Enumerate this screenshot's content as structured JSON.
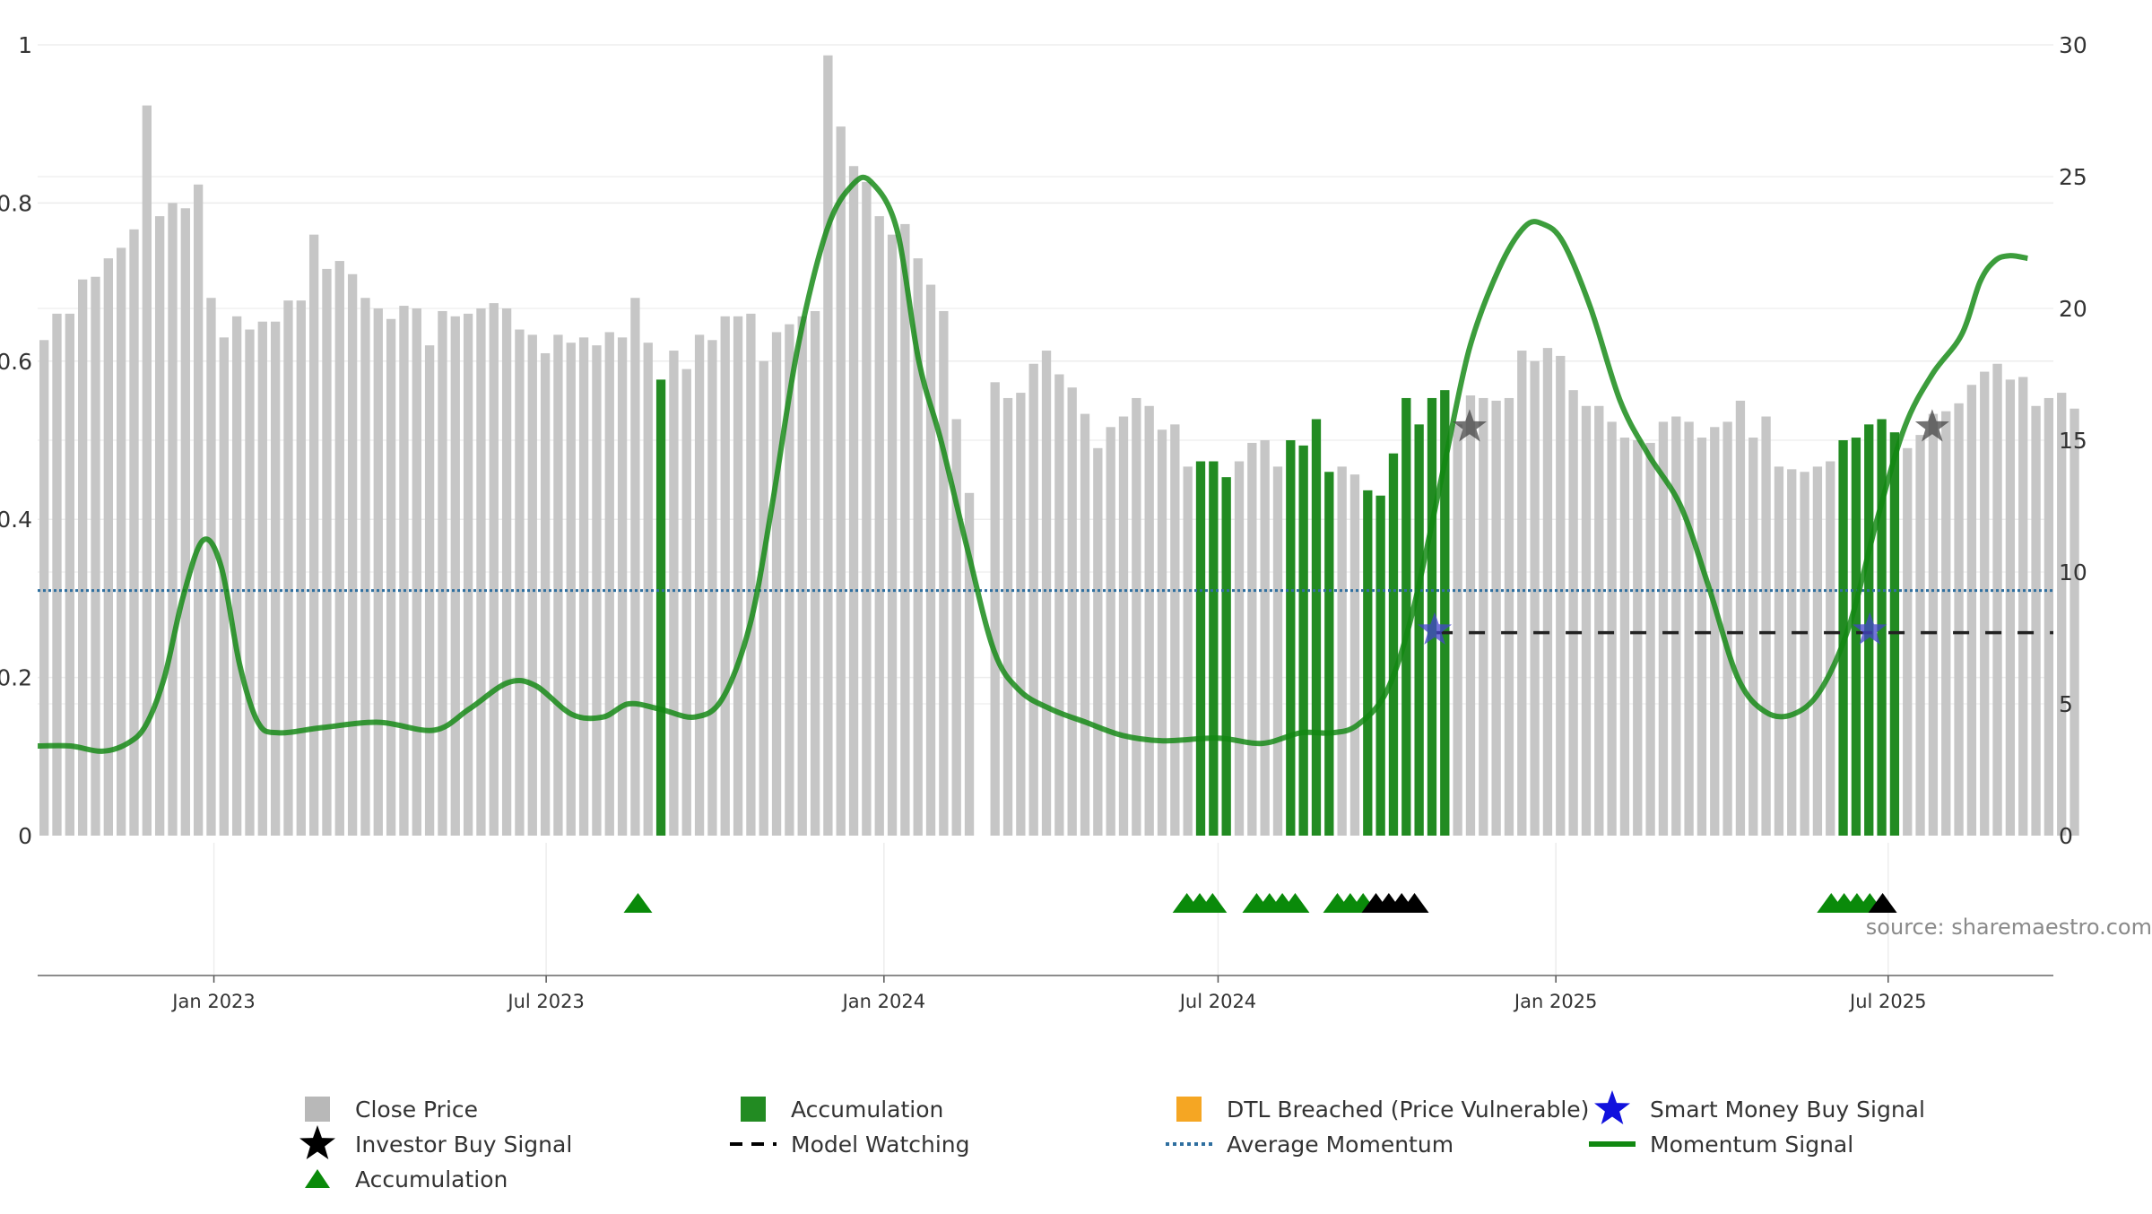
{
  "chart_data": {
    "type": "bar",
    "title": "",
    "xlabel": "",
    "ylabel": "",
    "left_axis": {
      "ticks": [
        0,
        0.2,
        0.4,
        0.6,
        0.8,
        1
      ],
      "tick_labels": [
        "0",
        "0.2",
        "0.4",
        "0.6",
        "0.8",
        "1"
      ],
      "ylim": [
        0,
        1
      ]
    },
    "right_axis": {
      "ticks": [
        0,
        5,
        10,
        15,
        20,
        25,
        30
      ],
      "tick_labels": [
        "0",
        "5",
        "10",
        "15",
        "20",
        "25",
        "30"
      ],
      "ylim": [
        0,
        30
      ]
    },
    "x_axis": {
      "range": [
        "2022-09-27",
        "2025-09-29"
      ],
      "ticks": [
        {
          "date": "2023-01-01",
          "label": "Jan 2023"
        },
        {
          "date": "2023-07-01",
          "label": "Jul 2023"
        },
        {
          "date": "2024-01-01",
          "label": "Jan 2024"
        },
        {
          "date": "2024-07-01",
          "label": "Jul 2024"
        },
        {
          "date": "2025-01-01",
          "label": "Jan 2025"
        },
        {
          "date": "2025-07-01",
          "label": "Jul 2025"
        }
      ]
    },
    "grid": true,
    "source_note": "source: sharemaestro.com",
    "colors": {
      "close_price": "#c6c6c6",
      "accumulation": "#228b22",
      "momentum": "#118811",
      "average_momentum": "#2f6f9f",
      "model_watching": "#222222",
      "investor_buy": "#444444",
      "smart_money": "#4444cc",
      "dtl_breached": "#f5a623"
    },
    "bars": {
      "start": "2022-09-27",
      "step_days": 7,
      "values": [
        18.8,
        19.8,
        19.8,
        21.1,
        21.2,
        21.9,
        22.3,
        23.0,
        27.7,
        23.5,
        24.0,
        23.8,
        24.7,
        20.4,
        18.9,
        19.7,
        19.2,
        19.5,
        19.5,
        20.3,
        20.3,
        22.8,
        21.5,
        21.8,
        21.3,
        20.4,
        20.0,
        19.6,
        20.1,
        20.0,
        18.6,
        19.9,
        19.7,
        19.8,
        20.0,
        20.2,
        20.0,
        19.2,
        19.0,
        18.3,
        19.0,
        18.7,
        18.9,
        18.6,
        19.1,
        18.9,
        20.4,
        18.7,
        17.3,
        18.4,
        17.7,
        19.0,
        18.8,
        19.7,
        19.7,
        19.8,
        18.0,
        19.1,
        19.4,
        19.7,
        19.9,
        29.6,
        26.9,
        25.4,
        24.8,
        23.5,
        22.8,
        23.2,
        21.9,
        20.9,
        19.9,
        15.8,
        13.0,
        0,
        17.2,
        16.6,
        16.8,
        17.9,
        18.4,
        17.5,
        17.0,
        16.0,
        14.7,
        15.5,
        15.9,
        16.6,
        16.3,
        15.4,
        15.6,
        14.0,
        14.2,
        14.2,
        13.6,
        14.2,
        14.9,
        15.0,
        14.0,
        15.0,
        14.8,
        15.8,
        13.8,
        14.0,
        13.7,
        13.1,
        12.9,
        14.5,
        16.6,
        15.6,
        16.6,
        16.9,
        15.6,
        16.7,
        16.6,
        16.5,
        16.6,
        18.4,
        18.0,
        18.5,
        18.2,
        16.9,
        16.3,
        16.3,
        15.7,
        15.1,
        15.0,
        14.9,
        15.7,
        15.9,
        15.7,
        15.1,
        15.5,
        15.7,
        16.5,
        15.1,
        15.9,
        14.0,
        13.9,
        13.8,
        14.0,
        14.2,
        15.0,
        15.1,
        15.6,
        15.8,
        15.3,
        14.7,
        15.2,
        16.0,
        16.1,
        16.4,
        17.1,
        17.6,
        17.9,
        17.3,
        17.4,
        16.3,
        16.6,
        16.8,
        16.2
      ],
      "accumulation_indices": [
        48,
        90,
        91,
        92,
        97,
        98,
        99,
        100,
        103,
        104,
        105,
        106,
        107,
        108,
        109,
        140,
        141,
        142,
        143,
        144
      ]
    },
    "momentum": {
      "points": [
        [
          "2022-09-27",
          3.4
        ],
        [
          "2022-10-15",
          3.4
        ],
        [
          "2022-11-01",
          3.2
        ],
        [
          "2022-11-15",
          3.5
        ],
        [
          "2022-11-25",
          4.2
        ],
        [
          "2022-12-05",
          6.0
        ],
        [
          "2022-12-15",
          9.0
        ],
        [
          "2022-12-26",
          11.2
        ],
        [
          "2023-01-05",
          10.2
        ],
        [
          "2023-01-15",
          6.5
        ],
        [
          "2023-01-25",
          4.3
        ],
        [
          "2023-02-05",
          3.9
        ],
        [
          "2023-03-01",
          4.1
        ],
        [
          "2023-04-01",
          4.3
        ],
        [
          "2023-05-01",
          4.0
        ],
        [
          "2023-05-20",
          4.8
        ],
        [
          "2023-06-10",
          5.8
        ],
        [
          "2023-06-25",
          5.7
        ],
        [
          "2023-07-15",
          4.6
        ],
        [
          "2023-08-01",
          4.5
        ],
        [
          "2023-08-15",
          5.0
        ],
        [
          "2023-09-01",
          4.8
        ],
        [
          "2023-09-20",
          4.5
        ],
        [
          "2023-10-05",
          5.2
        ],
        [
          "2023-10-20",
          8.0
        ],
        [
          "2023-11-01",
          12.5
        ],
        [
          "2023-11-15",
          18.5
        ],
        [
          "2023-12-01",
          23.0
        ],
        [
          "2023-12-15",
          24.7
        ],
        [
          "2023-12-25",
          24.8
        ],
        [
          "2024-01-08",
          23.0
        ],
        [
          "2024-01-20",
          18.0
        ],
        [
          "2024-02-01",
          15.0
        ],
        [
          "2024-02-15",
          11.0
        ],
        [
          "2024-03-01",
          7.0
        ],
        [
          "2024-03-15",
          5.5
        ],
        [
          "2024-04-01",
          4.8
        ],
        [
          "2024-04-20",
          4.3
        ],
        [
          "2024-05-10",
          3.8
        ],
        [
          "2024-06-01",
          3.6
        ],
        [
          "2024-07-01",
          3.7
        ],
        [
          "2024-07-25",
          3.5
        ],
        [
          "2024-08-15",
          3.9
        ],
        [
          "2024-09-01",
          3.9
        ],
        [
          "2024-09-15",
          4.2
        ],
        [
          "2024-10-01",
          5.5
        ],
        [
          "2024-10-15",
          8.5
        ],
        [
          "2024-11-01",
          14.0
        ],
        [
          "2024-11-15",
          18.5
        ],
        [
          "2024-12-01",
          21.5
        ],
        [
          "2024-12-15",
          23.1
        ],
        [
          "2024-12-25",
          23.2
        ],
        [
          "2025-01-05",
          22.5
        ],
        [
          "2025-01-20",
          20.0
        ],
        [
          "2025-02-05",
          16.5
        ],
        [
          "2025-02-20",
          14.5
        ],
        [
          "2025-03-10",
          12.5
        ],
        [
          "2025-03-25",
          9.5
        ],
        [
          "2025-04-10",
          6.0
        ],
        [
          "2025-04-25",
          4.7
        ],
        [
          "2025-05-10",
          4.6
        ],
        [
          "2025-05-25",
          5.5
        ],
        [
          "2025-06-10",
          8.0
        ],
        [
          "2025-06-25",
          12.0
        ],
        [
          "2025-07-10",
          15.5
        ],
        [
          "2025-07-25",
          17.5
        ],
        [
          "2025-08-10",
          19.0
        ],
        [
          "2025-08-20",
          21.0
        ],
        [
          "2025-08-28",
          21.8
        ],
        [
          "2025-09-05",
          22.0
        ],
        [
          "2025-09-15",
          21.9
        ]
      ]
    },
    "average_momentum": 9.3,
    "model_watching": {
      "start": "2024-10-28",
      "end": "2025-09-29",
      "value": 7.7
    },
    "smart_money_buy_signals": [
      {
        "date": "2024-10-27",
        "value": 7.8
      },
      {
        "date": "2025-06-21",
        "value": 7.8
      }
    ],
    "investor_buy_signals": [
      {
        "date": "2024-11-15",
        "value": 15.5
      },
      {
        "date": "2025-07-25",
        "value": 15.5
      }
    ],
    "triangle_markers": [
      {
        "date": "2023-08-20",
        "color": "green"
      },
      {
        "date": "2024-06-14",
        "color": "green"
      },
      {
        "date": "2024-06-21",
        "color": "green"
      },
      {
        "date": "2024-06-28",
        "color": "green"
      },
      {
        "date": "2024-07-22",
        "color": "green"
      },
      {
        "date": "2024-07-29",
        "color": "green"
      },
      {
        "date": "2024-08-05",
        "color": "green"
      },
      {
        "date": "2024-08-12",
        "color": "green"
      },
      {
        "date": "2024-09-04",
        "color": "green"
      },
      {
        "date": "2024-09-11",
        "color": "green"
      },
      {
        "date": "2024-09-18",
        "color": "green"
      },
      {
        "date": "2024-09-25",
        "color": "black"
      },
      {
        "date": "2024-10-02",
        "color": "black"
      },
      {
        "date": "2024-10-09",
        "color": "black"
      },
      {
        "date": "2024-10-16",
        "color": "black"
      },
      {
        "date": "2025-05-31",
        "color": "green"
      },
      {
        "date": "2025-06-07",
        "color": "green"
      },
      {
        "date": "2025-06-14",
        "color": "green"
      },
      {
        "date": "2025-06-21",
        "color": "green"
      },
      {
        "date": "2025-06-28",
        "color": "black"
      }
    ],
    "legend": {
      "placement": "bottom",
      "entries": [
        {
          "label": "Close Price",
          "symbol": "square",
          "color": "#b8b8b8"
        },
        {
          "label": "Accumulation",
          "symbol": "square",
          "color": "#228b22"
        },
        {
          "label": "DTL Breached (Price Vulnerable)",
          "symbol": "square",
          "color": "#f5a623"
        },
        {
          "label": "Smart Money Buy Signal",
          "symbol": "star",
          "color": "#1111dd"
        },
        {
          "label": "Investor Buy Signal",
          "symbol": "star",
          "color": "#000000"
        },
        {
          "label": "Model Watching",
          "symbol": "dash",
          "color": "#000000"
        },
        {
          "label": "Average Momentum",
          "symbol": "dotted",
          "color": "#2f6f9f"
        },
        {
          "label": "Momentum Signal",
          "symbol": "line",
          "color": "#118811"
        },
        {
          "label": "Accumulation",
          "symbol": "triangle",
          "color": "#0a8a0a"
        }
      ]
    }
  }
}
